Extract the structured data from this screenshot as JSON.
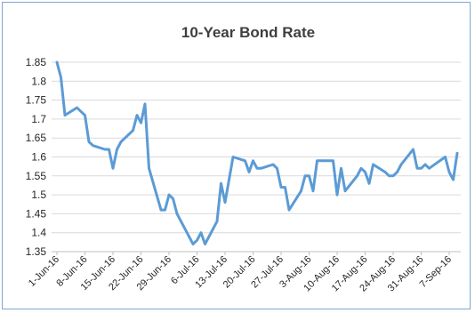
{
  "chart_data": {
    "type": "line",
    "title": "10-Year Bond Rate",
    "xlabel": "",
    "ylabel": "",
    "ylim": [
      1.35,
      1.85
    ],
    "yticks": [
      "1.35",
      "1.4",
      "1.45",
      "1.5",
      "1.55",
      "1.6",
      "1.65",
      "1.7",
      "1.75",
      "1.8",
      "1.85"
    ],
    "grid": true,
    "legend": "none",
    "colors": {
      "line": "#5b9bd5",
      "title": "#3f3f3f",
      "frame": "#7fa6d2"
    },
    "x_tick_labels": [
      "1-Jun-16",
      "8-Jun-16",
      "15-Jun-16",
      "22-Jun-16",
      "29-Jun-16",
      "6-Jul-16",
      "13-Jul-16",
      "20-Jul-16",
      "27-Jul-16",
      "3-Aug-16",
      "10-Aug-16",
      "17-Aug-16",
      "24-Aug-16",
      "31-Aug-16",
      "7-Sep-16"
    ],
    "series": [
      {
        "x": [
          "1-Jun-16",
          "2-Jun-16",
          "3-Jun-16",
          "6-Jun-16",
          "7-Jun-16",
          "8-Jun-16",
          "9-Jun-16",
          "10-Jun-16",
          "13-Jun-16",
          "14-Jun-16",
          "15-Jun-16",
          "16-Jun-16",
          "17-Jun-16",
          "20-Jun-16",
          "21-Jun-16",
          "22-Jun-16",
          "23-Jun-16",
          "24-Jun-16",
          "27-Jun-16",
          "28-Jun-16",
          "29-Jun-16",
          "30-Jun-16",
          "1-Jul-16",
          "5-Jul-16",
          "6-Jul-16",
          "7-Jul-16",
          "8-Jul-16",
          "11-Jul-16",
          "12-Jul-16",
          "13-Jul-16",
          "14-Jul-16",
          "15-Jul-16",
          "18-Jul-16",
          "19-Jul-16",
          "20-Jul-16",
          "21-Jul-16",
          "22-Jul-16",
          "25-Jul-16",
          "26-Jul-16",
          "27-Jul-16",
          "28-Jul-16",
          "29-Jul-16",
          "1-Aug-16",
          "2-Aug-16",
          "3-Aug-16",
          "4-Aug-16",
          "5-Aug-16",
          "8-Aug-16",
          "9-Aug-16",
          "10-Aug-16",
          "11-Aug-16",
          "12-Aug-16",
          "15-Aug-16",
          "16-Aug-16",
          "17-Aug-16",
          "18-Aug-16",
          "19-Aug-16",
          "22-Aug-16",
          "23-Aug-16",
          "24-Aug-16",
          "25-Aug-16",
          "26-Aug-16",
          "29-Aug-16",
          "30-Aug-16",
          "31-Aug-16",
          "1-Sep-16",
          "2-Sep-16",
          "6-Sep-16",
          "7-Sep-16",
          "8-Sep-16",
          "9-Sep-16"
        ],
        "values": [
          1.85,
          1.81,
          1.71,
          1.73,
          1.72,
          1.71,
          1.64,
          1.63,
          1.62,
          1.62,
          1.57,
          1.62,
          1.64,
          1.67,
          1.71,
          1.69,
          1.74,
          1.57,
          1.46,
          1.46,
          1.5,
          1.49,
          1.45,
          1.37,
          1.38,
          1.4,
          1.37,
          1.43,
          1.53,
          1.48,
          1.54,
          1.6,
          1.59,
          1.56,
          1.59,
          1.57,
          1.57,
          1.58,
          1.57,
          1.52,
          1.52,
          1.46,
          1.51,
          1.55,
          1.55,
          1.51,
          1.59,
          1.59,
          1.59,
          1.5,
          1.57,
          1.51,
          1.55,
          1.57,
          1.56,
          1.53,
          1.58,
          1.56,
          1.55,
          1.55,
          1.56,
          1.58,
          1.62,
          1.57,
          1.57,
          1.58,
          1.57,
          1.6,
          1.56,
          1.54,
          1.61
        ]
      }
    ]
  }
}
